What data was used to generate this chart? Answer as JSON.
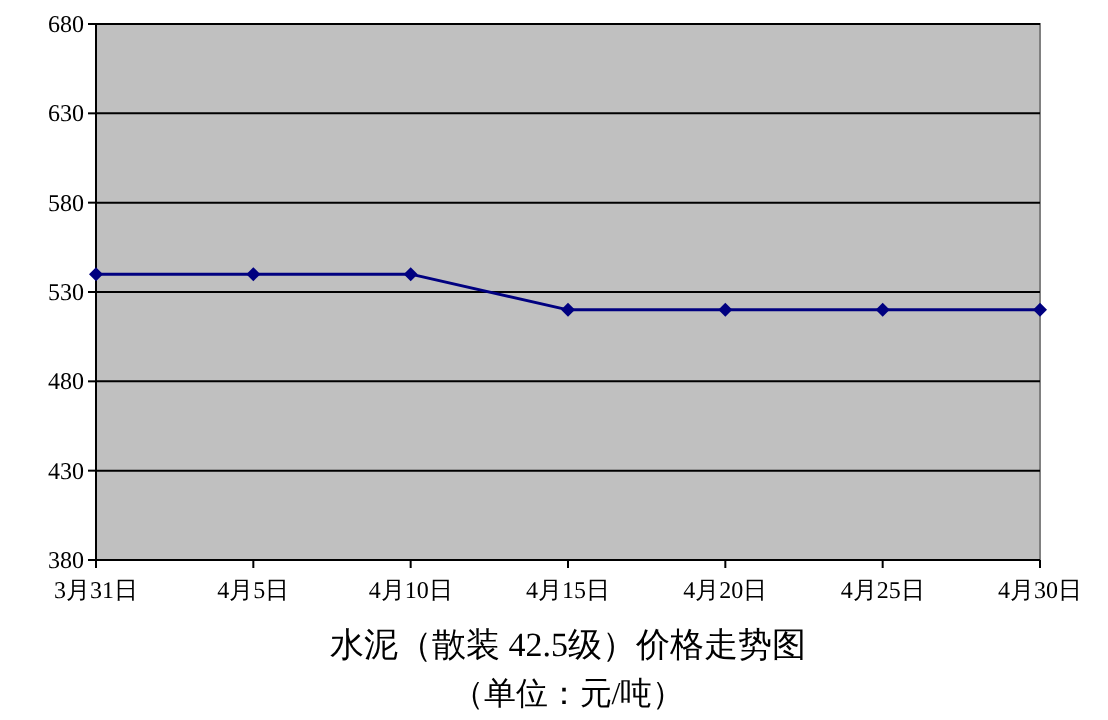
{
  "chart_data": {
    "type": "line",
    "title": "水泥（散装 42.5级）价格走势图",
    "subtitle": "（单位：元/吨）",
    "categories": [
      "3月31日",
      "4月5日",
      "4月10日",
      "4月15日",
      "4月20日",
      "4月25日",
      "4月30日"
    ],
    "series": [
      {
        "color": "#000080",
        "values": [
          540,
          540,
          540,
          520,
          520,
          520,
          520
        ]
      }
    ],
    "ylim": [
      380,
      680
    ],
    "yticks": [
      380,
      430,
      480,
      530,
      580,
      630,
      680
    ],
    "grid": "y",
    "marker": "diamond",
    "line_style": "solid"
  }
}
